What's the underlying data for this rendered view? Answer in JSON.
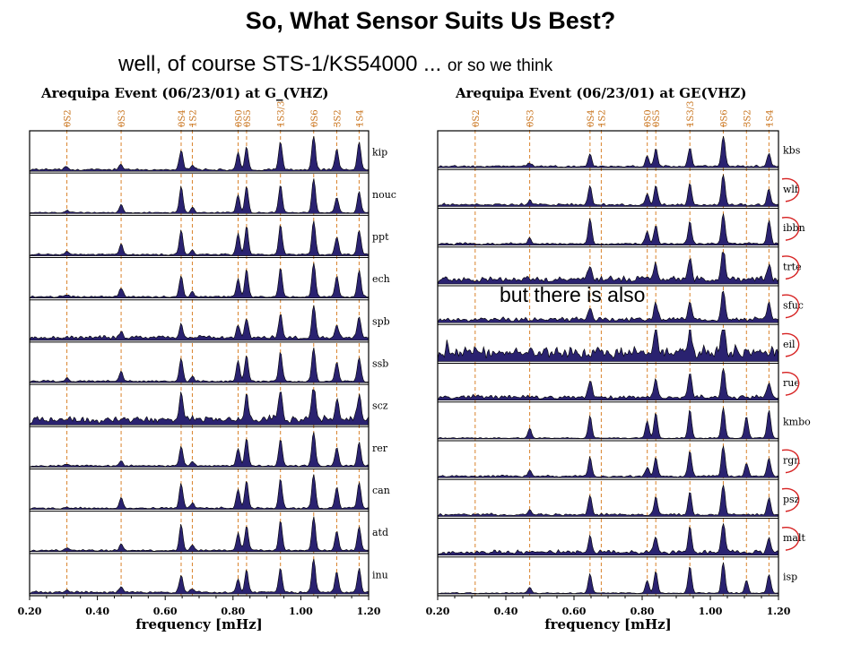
{
  "slide": {
    "title": "So, What Sensor Suits Us Best?",
    "subtitle_main": "well, of course STS-1/KS54000 ...",
    "subtitle_small": "or so we think",
    "overlay_note": "but there is also"
  },
  "colors": {
    "fill": "#2a2270",
    "line": "#000000",
    "mode_line": "#d9822b",
    "mode_label": "#c8741e",
    "circle": "#d62020"
  },
  "chart_data": [
    {
      "type": "area",
      "title": "Arequipa Event (06/23/01) at G_(VHZ)",
      "xlabel": "frequency [mHz]",
      "xlim": [
        0.2,
        1.2
      ],
      "xticks": [
        "0.20",
        "0.40",
        "0.60",
        "0.80",
        "1.00",
        "1.20"
      ],
      "modes": [
        {
          "label": "0S2",
          "f": 0.31
        },
        {
          "label": "0S3",
          "f": 0.47
        },
        {
          "label": "0S4",
          "f": 0.647
        },
        {
          "label": "1S2",
          "f": 0.68
        },
        {
          "label": "0S0",
          "f": 0.815
        },
        {
          "label": "0S5",
          "f": 0.84
        },
        {
          "label": "1S3/3",
          "f": 0.94
        },
        {
          "label": "0S6",
          "f": 1.038
        },
        {
          "label": "3S2",
          "f": 1.106
        },
        {
          "label": "1S4",
          "f": 1.172
        }
      ],
      "series": [
        {
          "name": "kip",
          "noise": 0.1,
          "peaks": [
            [
              0.31,
              0.08
            ],
            [
              0.47,
              0.15
            ],
            [
              0.647,
              0.55
            ],
            [
              0.68,
              0.1
            ],
            [
              0.815,
              0.5
            ],
            [
              0.84,
              0.65
            ],
            [
              0.94,
              0.8
            ],
            [
              1.038,
              1.0
            ],
            [
              1.106,
              0.6
            ],
            [
              1.172,
              0.8
            ]
          ],
          "circled": false
        },
        {
          "name": "nouc",
          "noise": 0.06,
          "peaks": [
            [
              0.31,
              0.05
            ],
            [
              0.47,
              0.25
            ],
            [
              0.647,
              0.75
            ],
            [
              0.68,
              0.15
            ],
            [
              0.815,
              0.5
            ],
            [
              0.84,
              0.75
            ],
            [
              0.94,
              0.8
            ],
            [
              1.038,
              1.0
            ],
            [
              1.106,
              0.45
            ],
            [
              1.172,
              0.6
            ]
          ],
          "circled": false
        },
        {
          "name": "ppt",
          "noise": 0.08,
          "peaks": [
            [
              0.31,
              0.08
            ],
            [
              0.47,
              0.3
            ],
            [
              0.647,
              0.7
            ],
            [
              0.68,
              0.12
            ],
            [
              0.815,
              0.6
            ],
            [
              0.84,
              0.8
            ],
            [
              0.94,
              0.85
            ],
            [
              1.038,
              1.0
            ],
            [
              1.106,
              0.5
            ],
            [
              1.172,
              0.7
            ]
          ],
          "circled": false
        },
        {
          "name": "ech",
          "noise": 0.08,
          "peaks": [
            [
              0.31,
              0.05
            ],
            [
              0.47,
              0.25
            ],
            [
              0.647,
              0.6
            ],
            [
              0.68,
              0.15
            ],
            [
              0.815,
              0.5
            ],
            [
              0.84,
              0.8
            ],
            [
              0.94,
              0.85
            ],
            [
              1.038,
              1.0
            ],
            [
              1.106,
              0.6
            ],
            [
              1.172,
              0.75
            ]
          ],
          "circled": false
        },
        {
          "name": "spb",
          "noise": 0.16,
          "peaks": [
            [
              0.31,
              0.05
            ],
            [
              0.47,
              0.15
            ],
            [
              0.647,
              0.4
            ],
            [
              0.815,
              0.35
            ],
            [
              0.84,
              0.55
            ],
            [
              0.94,
              0.65
            ],
            [
              1.038,
              1.0
            ],
            [
              1.106,
              0.4
            ],
            [
              1.172,
              0.6
            ]
          ],
          "circled": false
        },
        {
          "name": "ssb",
          "noise": 0.08,
          "peaks": [
            [
              0.31,
              0.1
            ],
            [
              0.47,
              0.3
            ],
            [
              0.647,
              0.65
            ],
            [
              0.68,
              0.15
            ],
            [
              0.815,
              0.6
            ],
            [
              0.84,
              0.75
            ],
            [
              0.94,
              0.85
            ],
            [
              1.038,
              1.0
            ],
            [
              1.106,
              0.55
            ],
            [
              1.172,
              0.7
            ]
          ],
          "circled": false
        },
        {
          "name": "scz",
          "noise": 0.32,
          "peaks": [
            [
              0.647,
              0.8
            ],
            [
              0.84,
              0.7
            ],
            [
              0.94,
              0.9
            ],
            [
              1.038,
              1.0
            ],
            [
              1.106,
              0.6
            ],
            [
              1.172,
              0.75
            ]
          ],
          "circled": false
        },
        {
          "name": "rer",
          "noise": 0.08,
          "peaks": [
            [
              0.31,
              0.05
            ],
            [
              0.47,
              0.15
            ],
            [
              0.647,
              0.55
            ],
            [
              0.68,
              0.12
            ],
            [
              0.815,
              0.5
            ],
            [
              0.84,
              0.8
            ],
            [
              0.94,
              0.75
            ],
            [
              1.038,
              1.0
            ],
            [
              1.106,
              0.55
            ],
            [
              1.172,
              0.7
            ]
          ],
          "circled": false
        },
        {
          "name": "can",
          "noise": 0.08,
          "peaks": [
            [
              0.31,
              0.05
            ],
            [
              0.47,
              0.3
            ],
            [
              0.647,
              0.7
            ],
            [
              0.68,
              0.15
            ],
            [
              0.815,
              0.55
            ],
            [
              0.84,
              0.8
            ],
            [
              0.94,
              0.85
            ],
            [
              1.038,
              1.0
            ],
            [
              1.106,
              0.6
            ],
            [
              1.172,
              0.75
            ]
          ],
          "circled": false
        },
        {
          "name": "atd",
          "noise": 0.08,
          "peaks": [
            [
              0.31,
              0.08
            ],
            [
              0.47,
              0.2
            ],
            [
              0.647,
              0.75
            ],
            [
              0.68,
              0.15
            ],
            [
              0.815,
              0.5
            ],
            [
              0.84,
              0.7
            ],
            [
              0.94,
              0.85
            ],
            [
              1.038,
              1.0
            ],
            [
              1.106,
              0.55
            ],
            [
              1.172,
              0.7
            ]
          ],
          "circled": false
        },
        {
          "name": "inu",
          "noise": 0.1,
          "peaks": [
            [
              0.31,
              0.05
            ],
            [
              0.47,
              0.15
            ],
            [
              0.647,
              0.5
            ],
            [
              0.68,
              0.1
            ],
            [
              0.815,
              0.4
            ],
            [
              0.84,
              0.65
            ],
            [
              0.94,
              0.7
            ],
            [
              1.038,
              1.0
            ],
            [
              1.106,
              0.6
            ],
            [
              1.172,
              0.7
            ]
          ],
          "circled": false
        }
      ]
    },
    {
      "type": "area",
      "title": "Arequipa Event (06/23/01) at GE(VHZ)",
      "xlabel": "frequency [mHz]",
      "xlim": [
        0.2,
        1.2
      ],
      "xticks": [
        "0.20",
        "0.40",
        "0.60",
        "0.80",
        "1.00",
        "1.20"
      ],
      "modes": [
        {
          "label": "0S2",
          "f": 0.31
        },
        {
          "label": "0S3",
          "f": 0.47
        },
        {
          "label": "0S4",
          "f": 0.647
        },
        {
          "label": "1S2",
          "f": 0.68
        },
        {
          "label": "0S0",
          "f": 0.815
        },
        {
          "label": "0S5",
          "f": 0.84
        },
        {
          "label": "1S3/3",
          "f": 0.94
        },
        {
          "label": "0S6",
          "f": 1.038
        },
        {
          "label": "3S2",
          "f": 1.106
        },
        {
          "label": "1S4",
          "f": 1.172
        }
      ],
      "series": [
        {
          "name": "kbs",
          "noise": 0.1,
          "peaks": [
            [
              0.47,
              0.1
            ],
            [
              0.647,
              0.4
            ],
            [
              0.815,
              0.3
            ],
            [
              0.84,
              0.55
            ],
            [
              0.94,
              0.6
            ],
            [
              1.038,
              1.0
            ],
            [
              1.172,
              0.4
            ]
          ],
          "circled": false
        },
        {
          "name": "wlf",
          "noise": 0.12,
          "peaks": [
            [
              0.47,
              0.15
            ],
            [
              0.647,
              0.6
            ],
            [
              0.815,
              0.35
            ],
            [
              0.84,
              0.65
            ],
            [
              0.94,
              0.7
            ],
            [
              1.038,
              1.0
            ],
            [
              1.172,
              0.5
            ]
          ],
          "circled": true
        },
        {
          "name": "ibbn",
          "noise": 0.1,
          "peaks": [
            [
              0.47,
              0.2
            ],
            [
              0.647,
              0.8
            ],
            [
              0.815,
              0.4
            ],
            [
              0.84,
              0.6
            ],
            [
              0.94,
              0.7
            ],
            [
              1.038,
              1.0
            ],
            [
              1.172,
              0.75
            ]
          ],
          "circled": true
        },
        {
          "name": "trte",
          "noise": 0.3,
          "peaks": [
            [
              0.647,
              0.5
            ],
            [
              0.84,
              0.5
            ],
            [
              0.94,
              0.7
            ],
            [
              1.038,
              1.0
            ],
            [
              1.172,
              0.5
            ]
          ],
          "circled": true
        },
        {
          "name": "sfuc",
          "noise": 0.22,
          "peaks": [
            [
              0.647,
              0.4
            ],
            [
              0.84,
              0.5
            ],
            [
              0.94,
              0.6
            ],
            [
              1.038,
              1.0
            ],
            [
              1.172,
              0.6
            ]
          ],
          "circled": true
        },
        {
          "name": "eil",
          "noise": 0.6,
          "peaks": [
            [
              0.84,
              0.7
            ],
            [
              0.94,
              0.8
            ],
            [
              1.038,
              1.0
            ]
          ],
          "circled": true
        },
        {
          "name": "rue",
          "noise": 0.2,
          "peaks": [
            [
              0.647,
              0.5
            ],
            [
              0.84,
              0.6
            ],
            [
              0.94,
              0.8
            ],
            [
              1.038,
              1.0
            ],
            [
              1.172,
              0.5
            ]
          ],
          "circled": true
        },
        {
          "name": "kmbo",
          "noise": 0.06,
          "peaks": [
            [
              0.47,
              0.3
            ],
            [
              0.647,
              0.7
            ],
            [
              0.815,
              0.55
            ],
            [
              0.84,
              0.8
            ],
            [
              0.94,
              0.9
            ],
            [
              1.038,
              1.0
            ],
            [
              1.106,
              0.7
            ],
            [
              1.172,
              0.9
            ]
          ],
          "circled": false
        },
        {
          "name": "rgn",
          "noise": 0.1,
          "peaks": [
            [
              0.47,
              0.2
            ],
            [
              0.647,
              0.6
            ],
            [
              0.815,
              0.3
            ],
            [
              0.84,
              0.6
            ],
            [
              0.94,
              0.8
            ],
            [
              1.038,
              1.0
            ],
            [
              1.106,
              0.4
            ],
            [
              1.172,
              0.6
            ]
          ],
          "circled": true
        },
        {
          "name": "psz",
          "noise": 0.12,
          "peaks": [
            [
              0.47,
              0.15
            ],
            [
              0.647,
              0.6
            ],
            [
              0.84,
              0.55
            ],
            [
              0.94,
              0.75
            ],
            [
              1.038,
              1.0
            ],
            [
              1.172,
              0.55
            ]
          ],
          "circled": true
        },
        {
          "name": "malt",
          "noise": 0.2,
          "peaks": [
            [
              0.647,
              0.5
            ],
            [
              0.84,
              0.5
            ],
            [
              0.94,
              0.8
            ],
            [
              1.038,
              1.0
            ],
            [
              1.172,
              0.5
            ]
          ],
          "circled": true
        },
        {
          "name": "isp",
          "noise": 0.06,
          "peaks": [
            [
              0.47,
              0.2
            ],
            [
              0.647,
              0.6
            ],
            [
              0.815,
              0.4
            ],
            [
              0.84,
              0.7
            ],
            [
              0.94,
              0.85
            ],
            [
              1.038,
              1.0
            ],
            [
              1.106,
              0.4
            ],
            [
              1.172,
              0.6
            ]
          ],
          "circled": false
        }
      ]
    }
  ]
}
